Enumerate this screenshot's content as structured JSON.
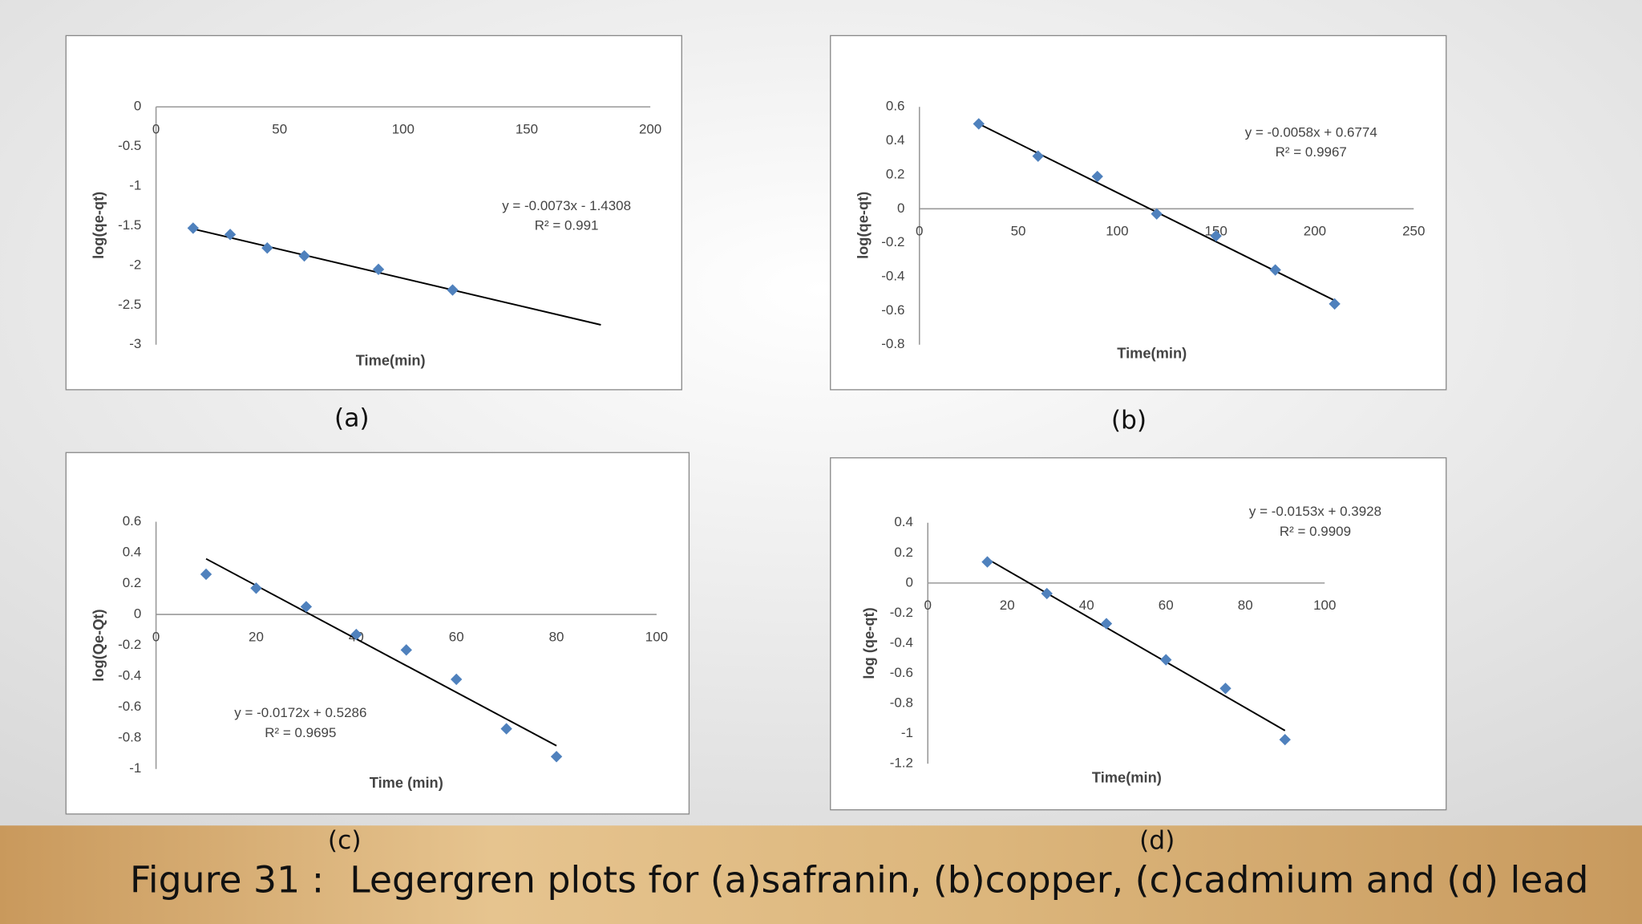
{
  "chart_data": [
    {
      "type": "scatter",
      "caption": "(a)",
      "xlabel": "Time(min)",
      "ylabel": "log(qe-qt)",
      "x": [
        15,
        30,
        45,
        60,
        90,
        120
      ],
      "values": [
        -1.53,
        -1.61,
        -1.78,
        -1.88,
        -2.05,
        -2.31
      ],
      "color": "#4f81bd",
      "trendline": {
        "x": [
          15,
          180
        ],
        "values": [
          -1.54,
          -2.75
        ],
        "color": "#000000"
      },
      "annotations": [
        "y = -0.0073x - 1.4308",
        "R² = 0.991"
      ],
      "xlim": [
        0,
        200
      ],
      "xticks": [
        0,
        50,
        100,
        150,
        200
      ],
      "ylim": [
        -3,
        0
      ],
      "yticks": [
        0,
        -0.5,
        -1,
        -1.5,
        -2,
        -2.5,
        -3
      ]
    },
    {
      "type": "scatter",
      "caption": "(b)",
      "xlabel": "Time(min)",
      "ylabel": "log(qe-qt)",
      "x": [
        30,
        60,
        90,
        120,
        150,
        180,
        210
      ],
      "values": [
        0.5,
        0.31,
        0.19,
        -0.03,
        -0.16,
        -0.36,
        -0.56
      ],
      "color": "#4f81bd",
      "trendline": {
        "x": [
          30,
          210
        ],
        "values": [
          0.5,
          -0.54
        ],
        "color": "#000000"
      },
      "annotations": [
        "y = -0.0058x + 0.6774",
        "R² = 0.9967"
      ],
      "xlim": [
        0,
        250
      ],
      "xticks": [
        0,
        50,
        100,
        150,
        200,
        250
      ],
      "ylim": [
        -0.8,
        0.6
      ],
      "yticks": [
        0.6,
        0.4,
        0.2,
        0,
        -0.2,
        -0.4,
        -0.6,
        -0.8
      ]
    },
    {
      "type": "scatter",
      "caption": "(c)",
      "xlabel": "Time (min)",
      "ylabel": "log(Qe-Qt)",
      "x": [
        10,
        20,
        30,
        40,
        50,
        60,
        70,
        80
      ],
      "values": [
        0.26,
        0.17,
        0.05,
        -0.13,
        -0.23,
        -0.42,
        -0.74,
        -0.92
      ],
      "color": "#4f81bd",
      "trendline": {
        "x": [
          10,
          80
        ],
        "values": [
          0.36,
          -0.85
        ],
        "color": "#000000"
      },
      "annotations": [
        "y = -0.0172x + 0.5286",
        "R² = 0.9695"
      ],
      "xlim": [
        0,
        100
      ],
      "xticks": [
        0,
        20,
        40,
        60,
        80,
        100
      ],
      "ylim": [
        -1,
        0.6
      ],
      "yticks": [
        0.6,
        0.4,
        0.2,
        0,
        -0.2,
        -0.4,
        -0.6,
        -0.8,
        -1
      ]
    },
    {
      "type": "scatter",
      "caption": "(d)",
      "xlabel": "Time(min)",
      "ylabel": "log (qe-qt)",
      "x": [
        15,
        30,
        45,
        60,
        75,
        90
      ],
      "values": [
        0.14,
        -0.07,
        -0.27,
        -0.51,
        -0.7,
        -1.04
      ],
      "color": "#4f81bd",
      "trendline": {
        "x": [
          15,
          90
        ],
        "values": [
          0.16,
          -0.98
        ],
        "color": "#000000"
      },
      "annotations": [
        "y = -0.0153x + 0.3928",
        "R² = 0.9909"
      ],
      "xlim": [
        0,
        100
      ],
      "xticks": [
        0,
        20,
        40,
        60,
        80,
        100
      ],
      "ylim": [
        -1.2,
        0.4
      ],
      "yticks": [
        0.4,
        0.2,
        0,
        -0.2,
        -0.4,
        -0.6,
        -0.8,
        -1,
        -1.2
      ]
    }
  ],
  "figure_caption": {
    "label": "Figure 31 :",
    "text": "Legergren plots for (a)safranin, (b)copper, (c)cadmium and (d) lead"
  }
}
